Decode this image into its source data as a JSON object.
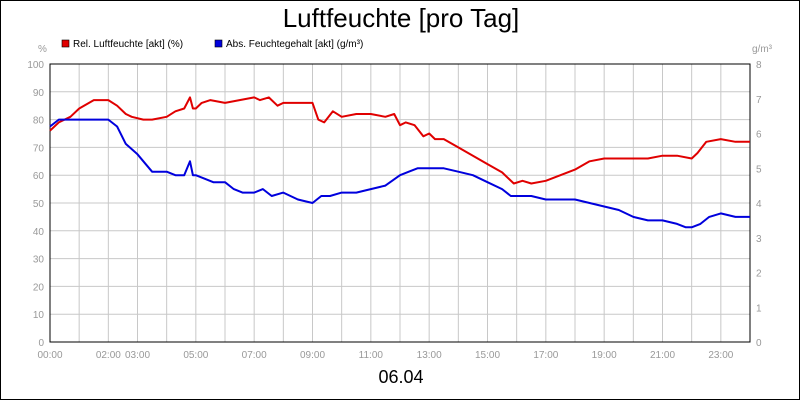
{
  "chart_data": {
    "type": "line",
    "title": "Luftfeuchte [pro Tag]",
    "date_label": "06.04",
    "left_unit": "%",
    "right_unit": "g/m³",
    "y_left_lim": [
      0,
      100
    ],
    "y_right_lim": [
      0,
      8
    ],
    "y_left_ticks": [
      0,
      10,
      20,
      30,
      40,
      50,
      60,
      70,
      80,
      90,
      100
    ],
    "y_right_ticks": [
      0,
      1,
      2,
      3,
      4,
      5,
      6,
      7,
      8
    ],
    "x_lim": [
      0,
      24
    ],
    "x_tick_labels": [
      {
        "h": 0,
        "label": "00:00"
      },
      {
        "h": 2,
        "label": "02:00"
      },
      {
        "h": 3,
        "label": "03:00"
      },
      {
        "h": 5,
        "label": "05:00"
      },
      {
        "h": 7,
        "label": "07:00"
      },
      {
        "h": 9,
        "label": "09:00"
      },
      {
        "h": 11,
        "label": "11:00"
      },
      {
        "h": 13,
        "label": "13:00"
      },
      {
        "h": 15,
        "label": "15:00"
      },
      {
        "h": 17,
        "label": "17:00"
      },
      {
        "h": 19,
        "label": "19:00"
      },
      {
        "h": 21,
        "label": "21:00"
      },
      {
        "h": 23,
        "label": "23:00"
      }
    ],
    "grid": true,
    "legend_position": "top-left",
    "series": [
      {
        "name": "Rel. Luftfeuchte [akt] (%)",
        "axis": "left",
        "color": "#e00000",
        "x": [
          0.0,
          0.3,
          0.7,
          1.0,
          1.5,
          2.0,
          2.3,
          2.6,
          2.8,
          3.2,
          3.5,
          4.0,
          4.3,
          4.6,
          4.8,
          4.9,
          5.0,
          5.2,
          5.5,
          6.0,
          6.5,
          7.0,
          7.2,
          7.5,
          7.8,
          8.0,
          8.5,
          9.0,
          9.2,
          9.4,
          9.7,
          10.0,
          10.5,
          11.0,
          11.5,
          11.8,
          12.0,
          12.2,
          12.5,
          12.8,
          13.0,
          13.2,
          13.5,
          14.0,
          14.5,
          15.0,
          15.5,
          15.9,
          16.2,
          16.5,
          17.0,
          17.5,
          18.0,
          18.5,
          19.0,
          19.5,
          20.0,
          20.5,
          21.0,
          21.5,
          22.0,
          22.2,
          22.5,
          23.0,
          23.5,
          24.0
        ],
        "values": [
          76,
          79,
          81,
          84,
          87,
          87,
          85,
          82,
          81,
          80,
          80,
          81,
          83,
          84,
          88,
          84,
          84,
          86,
          87,
          86,
          87,
          88,
          87,
          88,
          85,
          86,
          86,
          86,
          80,
          79,
          83,
          81,
          82,
          82,
          81,
          82,
          78,
          79,
          78,
          74,
          75,
          73,
          73,
          70,
          67,
          64,
          61,
          57,
          58,
          57,
          58,
          60,
          62,
          65,
          66,
          66,
          66,
          66,
          67,
          67,
          66,
          68,
          72,
          73,
          72,
          72
        ]
      },
      {
        "name": "Abs. Feuchtegehalt [akt] (g/m³)",
        "axis": "right",
        "color": "#0000dd",
        "x": [
          0.0,
          0.3,
          0.7,
          1.0,
          1.5,
          2.0,
          2.3,
          2.6,
          3.0,
          3.3,
          3.5,
          4.0,
          4.3,
          4.6,
          4.8,
          4.9,
          5.0,
          5.3,
          5.6,
          6.0,
          6.3,
          6.6,
          7.0,
          7.3,
          7.6,
          8.0,
          8.5,
          9.0,
          9.3,
          9.6,
          10.0,
          10.5,
          11.0,
          11.5,
          12.0,
          12.3,
          12.6,
          13.0,
          13.5,
          14.0,
          14.5,
          15.0,
          15.5,
          15.8,
          16.0,
          16.5,
          17.0,
          17.5,
          18.0,
          18.5,
          19.0,
          19.5,
          20.0,
          20.5,
          21.0,
          21.5,
          21.8,
          22.0,
          22.3,
          22.6,
          23.0,
          23.5,
          24.0
        ],
        "values": [
          6.2,
          6.4,
          6.4,
          6.4,
          6.4,
          6.4,
          6.2,
          5.7,
          5.4,
          5.1,
          4.9,
          4.9,
          4.8,
          4.8,
          5.2,
          4.8,
          4.8,
          4.7,
          4.6,
          4.6,
          4.4,
          4.3,
          4.3,
          4.4,
          4.2,
          4.3,
          4.1,
          4.0,
          4.2,
          4.2,
          4.3,
          4.3,
          4.4,
          4.5,
          4.8,
          4.9,
          5.0,
          5.0,
          5.0,
          4.9,
          4.8,
          4.6,
          4.4,
          4.2,
          4.2,
          4.2,
          4.1,
          4.1,
          4.1,
          4.0,
          3.9,
          3.8,
          3.6,
          3.5,
          3.5,
          3.4,
          3.3,
          3.3,
          3.4,
          3.6,
          3.7,
          3.6,
          3.6
        ]
      }
    ]
  }
}
